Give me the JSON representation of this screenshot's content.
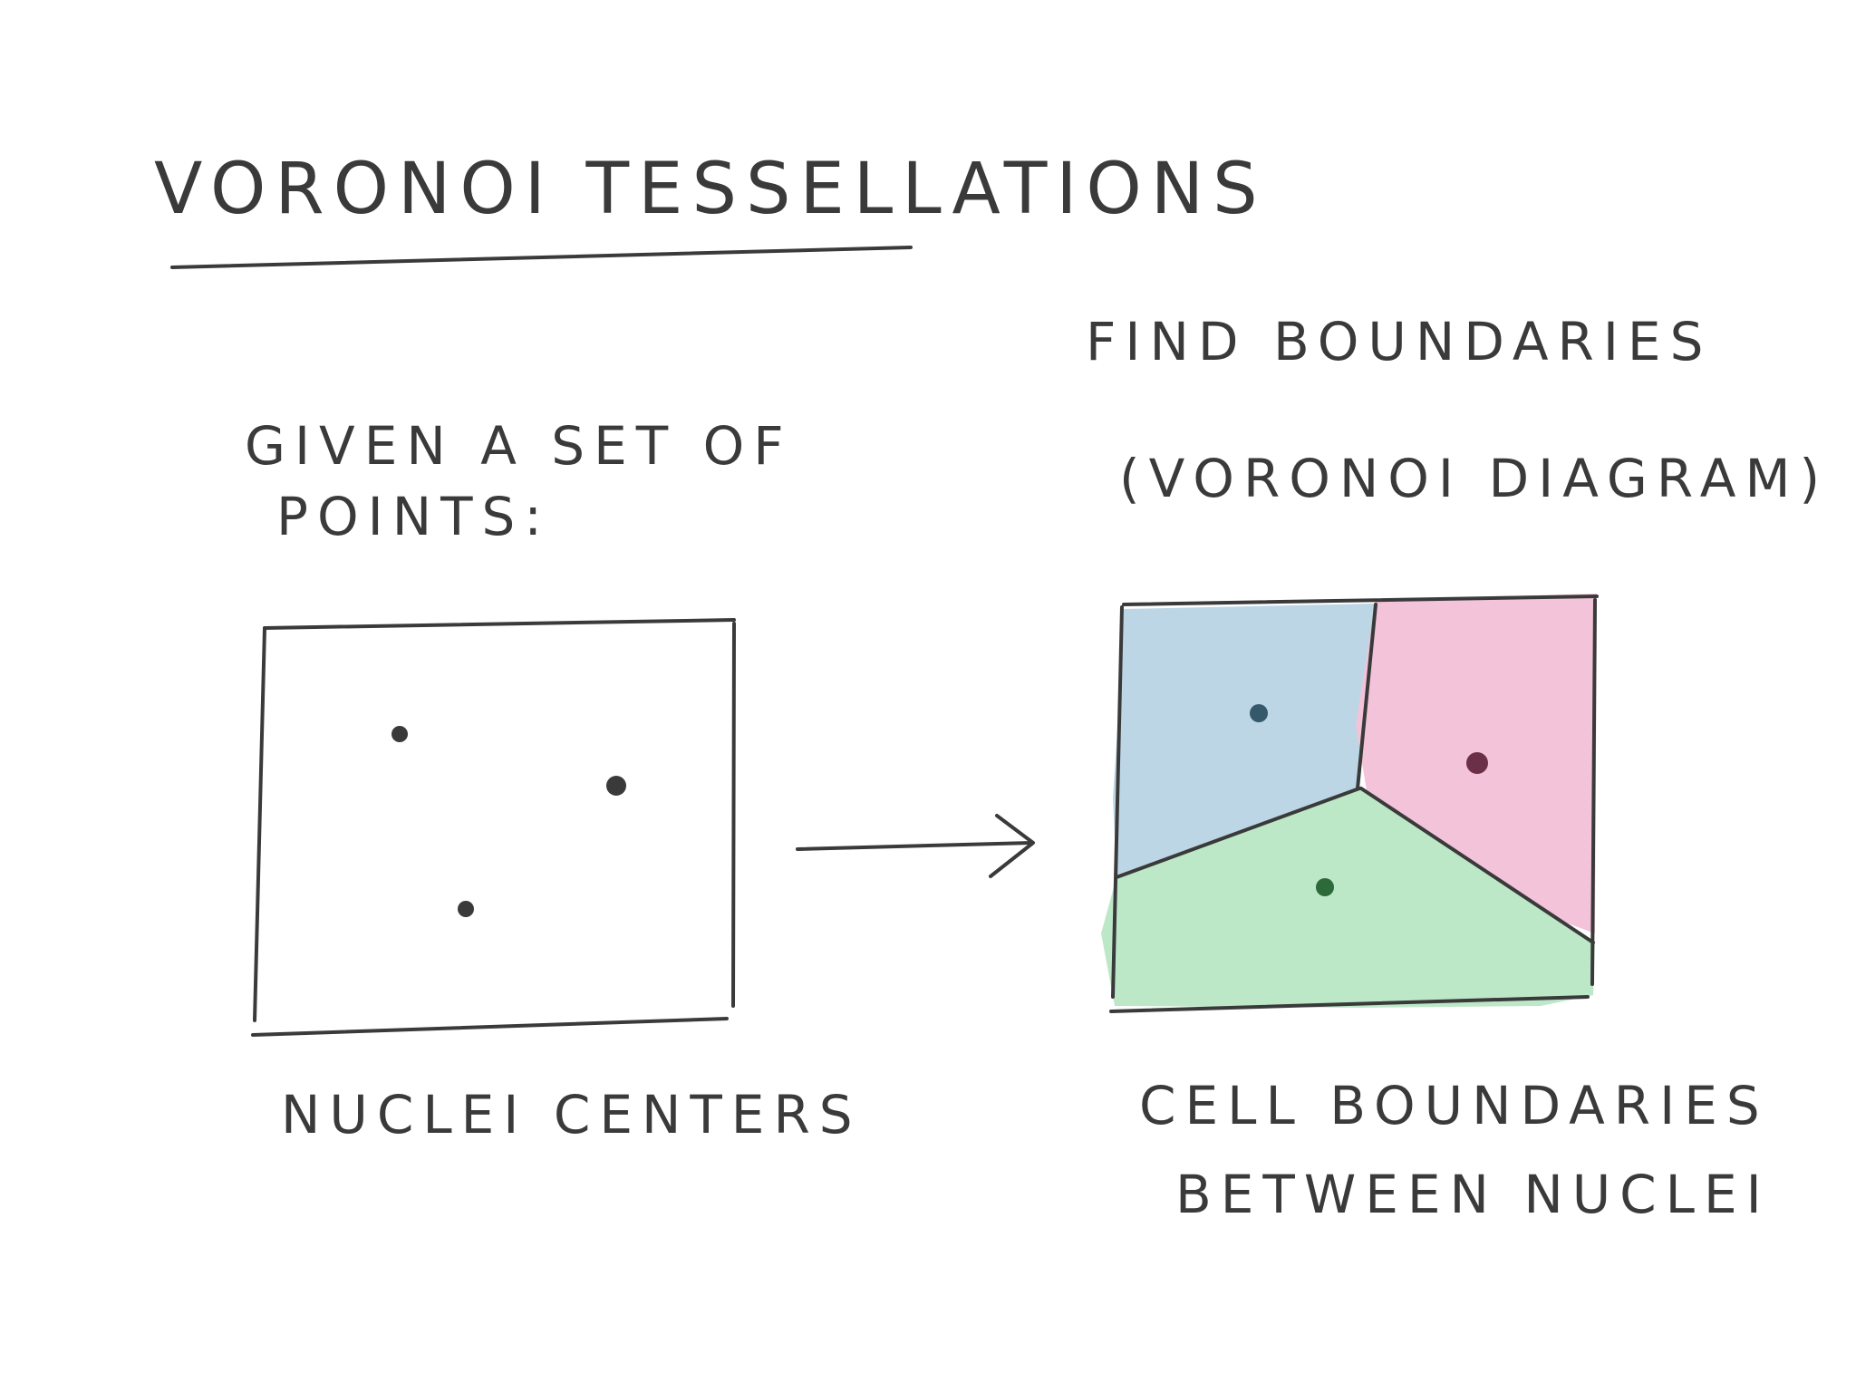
{
  "title": "VORONOI TESSELLATIONS",
  "left_caption_line1": "GIVEN A SET OF",
  "left_caption_line2": "POINTS:",
  "left_label": "NUCLEI CENTERS",
  "right_caption_line1": "FIND BOUNDARIES",
  "right_caption_line2": "(VORONOI DIAGRAM)",
  "right_label_line1": "CELL BOUNDARIES",
  "right_label_line2": "BETWEEN NUCLEI",
  "colors": {
    "ink": "#3a3a3a",
    "cell_blue": "#bcd6e6",
    "cell_pink": "#f3c3d9",
    "cell_green": "#bde8c8",
    "nucleus_blue": "#35596a",
    "nucleus_pink": "#6b3048",
    "nucleus_green": "#2c6a3a"
  }
}
